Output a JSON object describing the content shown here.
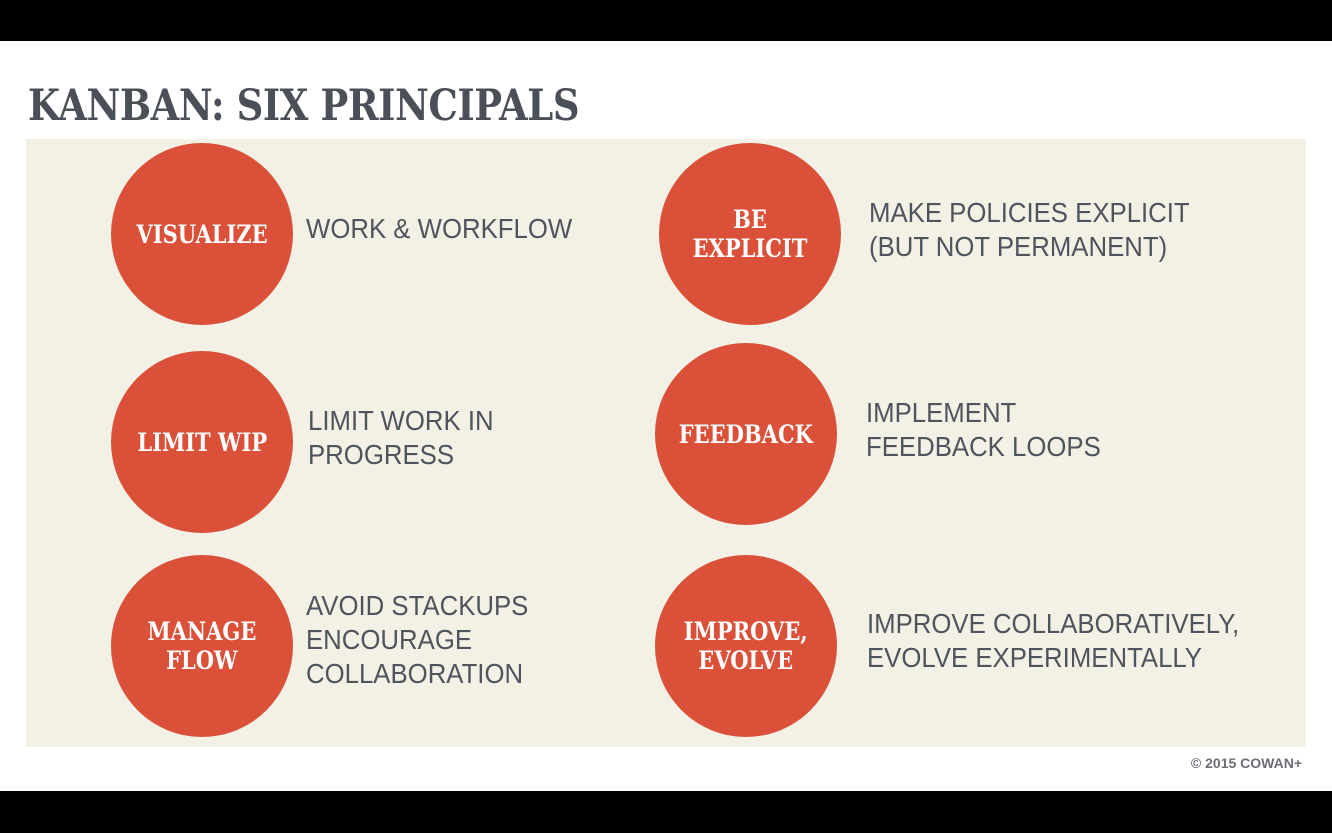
{
  "title": "KANBAN: SIX PRINCIPALS",
  "principles": [
    {
      "label": "VISUALIZE",
      "description": "WORK & WORKFLOW"
    },
    {
      "label": "BE EXPLICIT",
      "description": "MAKE POLICIES EXPLICIT\n(BUT NOT PERMANENT)"
    },
    {
      "label": "LIMIT WIP",
      "description": "LIMIT WORK IN\nPROGRESS"
    },
    {
      "label": "FEEDBACK",
      "description": "IMPLEMENT\nFEEDBACK LOOPS"
    },
    {
      "label": "MANAGE\nFLOW",
      "description": "AVOID STACKUPS\nENCOURAGE\nCOLLABORATION"
    },
    {
      "label": "IMPROVE,\nEVOLVE",
      "description": "IMPROVE COLLABORATIVELY,\nEVOLVE EXPERIMENTALLY"
    }
  ],
  "copyright": "© 2015 COWAN+",
  "colors": {
    "circle": "#db5038",
    "panel": "#f3f0e6",
    "title": "#4b4f58",
    "text": "#50545c"
  }
}
